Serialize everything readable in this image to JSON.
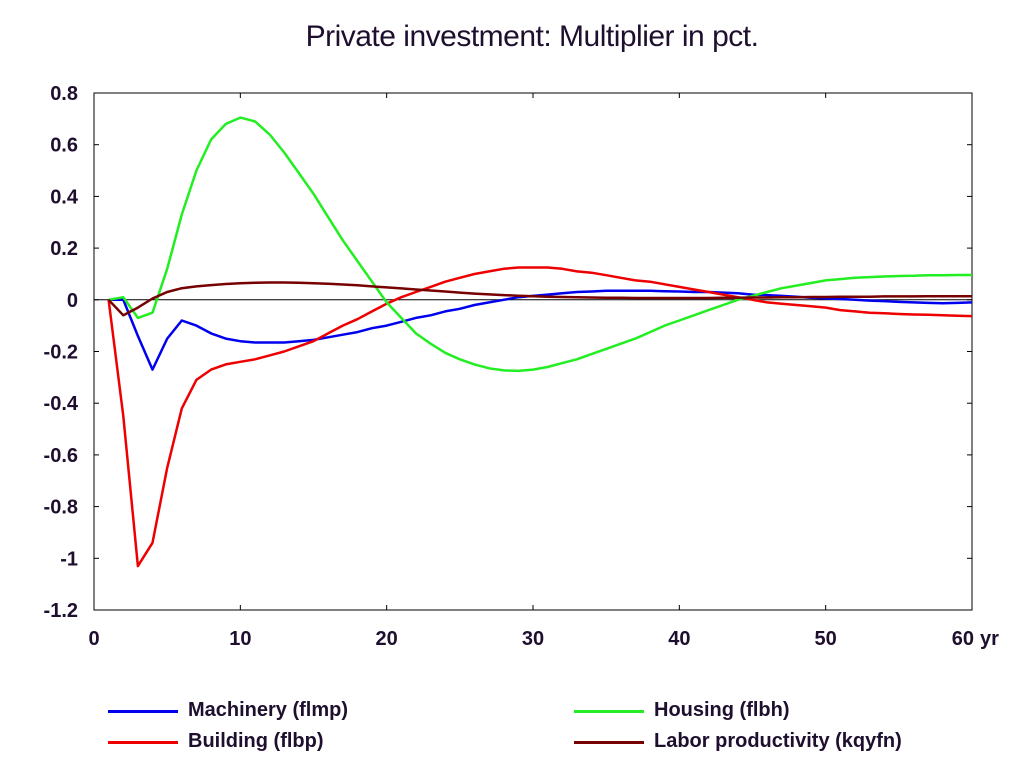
{
  "chart_data": {
    "type": "line",
    "title": "Private investment: Multiplier in pct.",
    "xlabel": "",
    "ylabel": "",
    "x_unit_label": "yr",
    "xlim": [
      0,
      60
    ],
    "ylim": [
      -1.2,
      0.8
    ],
    "x_ticks": [
      0,
      10,
      20,
      30,
      40,
      50,
      60
    ],
    "x_tick_labels": [
      "0",
      "10",
      "20",
      "30",
      "40",
      "50",
      "60"
    ],
    "y_ticks": [
      0.8,
      0.6,
      0.4,
      0.2,
      0,
      -0.2,
      -0.4,
      -0.6,
      -0.8,
      -1,
      -1.2
    ],
    "y_tick_labels": [
      "0.8",
      "0.6",
      "0.4",
      "0.2",
      "0",
      "-0.2",
      "-0.4",
      "-0.6",
      "-0.8",
      "-1",
      "-1.2"
    ],
    "zero_line": true,
    "grid": false,
    "legend_position": "bottom",
    "x": [
      1,
      2,
      3,
      4,
      5,
      6,
      7,
      8,
      9,
      10,
      11,
      12,
      13,
      14,
      15,
      16,
      17,
      18,
      19,
      20,
      21,
      22,
      23,
      24,
      25,
      26,
      27,
      28,
      29,
      30,
      31,
      32,
      33,
      34,
      35,
      36,
      37,
      38,
      39,
      40,
      41,
      42,
      43,
      44,
      45,
      46,
      47,
      48,
      49,
      50,
      51,
      52,
      53,
      54,
      55,
      56,
      57,
      58,
      59,
      60
    ],
    "series": [
      {
        "name": "Machinery (flmp)",
        "color": "#0000ee",
        "values": [
          0,
          0,
          -0.14,
          -0.27,
          -0.15,
          -0.08,
          -0.1,
          -0.13,
          -0.15,
          -0.16,
          -0.165,
          -0.165,
          -0.165,
          -0.16,
          -0.155,
          -0.145,
          -0.135,
          -0.125,
          -0.11,
          -0.1,
          -0.085,
          -0.07,
          -0.06,
          -0.045,
          -0.035,
          -0.02,
          -0.01,
          0,
          0.01,
          0.015,
          0.02,
          0.025,
          0.03,
          0.032,
          0.035,
          0.035,
          0.035,
          0.035,
          0.033,
          0.032,
          0.03,
          0.03,
          0.028,
          0.025,
          0.02,
          0.018,
          0.015,
          0.012,
          0.008,
          0.005,
          0.003,
          0,
          -0.003,
          -0.005,
          -0.008,
          -0.01,
          -0.012,
          -0.013,
          -0.012,
          -0.01
        ]
      },
      {
        "name": "Building (flbp)",
        "color": "#ee0000",
        "values": [
          0,
          -0.45,
          -1.03,
          -0.94,
          -0.65,
          -0.42,
          -0.31,
          -0.27,
          -0.25,
          -0.24,
          -0.23,
          -0.215,
          -0.2,
          -0.18,
          -0.16,
          -0.13,
          -0.1,
          -0.075,
          -0.045,
          -0.015,
          0.01,
          0.03,
          0.05,
          0.07,
          0.085,
          0.1,
          0.11,
          0.12,
          0.125,
          0.125,
          0.125,
          0.12,
          0.11,
          0.105,
          0.095,
          0.085,
          0.075,
          0.07,
          0.06,
          0.05,
          0.04,
          0.03,
          0.02,
          0.01,
          0,
          -0.01,
          -0.015,
          -0.02,
          -0.025,
          -0.03,
          -0.04,
          -0.045,
          -0.05,
          -0.052,
          -0.055,
          -0.057,
          -0.058,
          -0.06,
          -0.062,
          -0.063
        ]
      },
      {
        "name": "Housing (flbh)",
        "color": "#22ee22",
        "values": [
          0,
          0.01,
          -0.07,
          -0.05,
          0.12,
          0.33,
          0.5,
          0.62,
          0.68,
          0.705,
          0.69,
          0.64,
          0.57,
          0.49,
          0.41,
          0.32,
          0.23,
          0.15,
          0.07,
          -0.01,
          -0.07,
          -0.13,
          -0.17,
          -0.205,
          -0.23,
          -0.25,
          -0.265,
          -0.273,
          -0.275,
          -0.27,
          -0.26,
          -0.245,
          -0.23,
          -0.21,
          -0.19,
          -0.17,
          -0.15,
          -0.125,
          -0.1,
          -0.08,
          -0.06,
          -0.04,
          -0.02,
          0,
          0.015,
          0.03,
          0.045,
          0.055,
          0.065,
          0.075,
          0.08,
          0.085,
          0.088,
          0.09,
          0.092,
          0.093,
          0.095,
          0.095,
          0.096,
          0.096
        ]
      },
      {
        "name": "Labor productivity (kqyfn)",
        "color": "#770000",
        "values": [
          0,
          -0.06,
          -0.03,
          0.005,
          0.03,
          0.045,
          0.052,
          0.057,
          0.061,
          0.064,
          0.066,
          0.067,
          0.067,
          0.066,
          0.064,
          0.062,
          0.059,
          0.056,
          0.052,
          0.048,
          0.044,
          0.04,
          0.036,
          0.032,
          0.028,
          0.024,
          0.021,
          0.018,
          0.016,
          0.014,
          0.012,
          0.011,
          0.01,
          0.009,
          0.008,
          0.008,
          0.007,
          0.007,
          0.007,
          0.007,
          0.007,
          0.007,
          0.008,
          0.008,
          0.009,
          0.009,
          0.01,
          0.01,
          0.011,
          0.011,
          0.012,
          0.012,
          0.012,
          0.013,
          0.013,
          0.013,
          0.014,
          0.014,
          0.014,
          0.014
        ]
      }
    ]
  }
}
